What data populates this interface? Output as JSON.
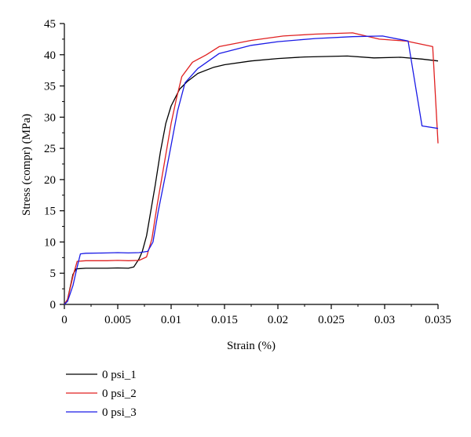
{
  "chart_data": {
    "type": "line",
    "title": "",
    "xlabel": "Strain (%)",
    "ylabel": "Stress (compr) (MPa)",
    "xlim": [
      0,
      0.035
    ],
    "ylim": [
      0,
      45
    ],
    "x_ticks": [
      0,
      0.005,
      0.01,
      0.015,
      0.02,
      0.025,
      0.03,
      0.035
    ],
    "x_tick_labels": [
      "0",
      "0.005",
      "0.01",
      "0.015",
      "0.02",
      "0.025",
      "0.03",
      "0.035"
    ],
    "y_ticks": [
      0,
      5,
      10,
      15,
      20,
      25,
      30,
      35,
      40,
      45
    ],
    "y_tick_labels": [
      "0",
      "5",
      "10",
      "15",
      "20",
      "25",
      "30",
      "35",
      "40",
      "45"
    ],
    "grid": false,
    "legend": {
      "placement": "below-left"
    },
    "series": [
      {
        "name": "0 psi_1",
        "color": "#000000",
        "points": [
          [
            0,
            0
          ],
          [
            0.0003,
            0.8
          ],
          [
            0.0008,
            4.8
          ],
          [
            0.0011,
            5.7
          ],
          [
            0.002,
            5.8
          ],
          [
            0.004,
            5.8
          ],
          [
            0.005,
            5.85
          ],
          [
            0.006,
            5.8
          ],
          [
            0.0065,
            6.0
          ],
          [
            0.007,
            7.3
          ],
          [
            0.0073,
            8.5
          ],
          [
            0.0077,
            11
          ],
          [
            0.008,
            14
          ],
          [
            0.0085,
            19
          ],
          [
            0.009,
            24.5
          ],
          [
            0.0095,
            29
          ],
          [
            0.01,
            31.8
          ],
          [
            0.0108,
            34.5
          ],
          [
            0.0115,
            35.7
          ],
          [
            0.0125,
            37
          ],
          [
            0.014,
            38
          ],
          [
            0.015,
            38.4
          ],
          [
            0.0175,
            39
          ],
          [
            0.02,
            39.4
          ],
          [
            0.0225,
            39.65
          ],
          [
            0.0265,
            39.8
          ],
          [
            0.029,
            39.5
          ],
          [
            0.0315,
            39.6
          ],
          [
            0.0335,
            39.3
          ],
          [
            0.035,
            39.0
          ]
        ]
      },
      {
        "name": "0 psi_2",
        "color": "#e02020",
        "points": [
          [
            0,
            0
          ],
          [
            0.0003,
            0.8
          ],
          [
            0.0008,
            4.5
          ],
          [
            0.0012,
            6.9
          ],
          [
            0.002,
            7.0
          ],
          [
            0.004,
            7.0
          ],
          [
            0.005,
            7.05
          ],
          [
            0.006,
            7.0
          ],
          [
            0.007,
            7.05
          ],
          [
            0.0077,
            7.6
          ],
          [
            0.0082,
            10.5
          ],
          [
            0.0087,
            16
          ],
          [
            0.0093,
            22
          ],
          [
            0.01,
            29
          ],
          [
            0.0105,
            33
          ],
          [
            0.011,
            36.5
          ],
          [
            0.012,
            38.8
          ],
          [
            0.0133,
            40
          ],
          [
            0.0145,
            41.3
          ],
          [
            0.0175,
            42.3
          ],
          [
            0.0205,
            43
          ],
          [
            0.0235,
            43.3
          ],
          [
            0.027,
            43.5
          ],
          [
            0.0295,
            42.5
          ],
          [
            0.032,
            42.2
          ],
          [
            0.0345,
            41.3
          ],
          [
            0.035,
            25.8
          ]
        ]
      },
      {
        "name": "0 psi_3",
        "color": "#1a1ae6",
        "points": [
          [
            0,
            0
          ],
          [
            0.0003,
            0.5
          ],
          [
            0.0008,
            3.0
          ],
          [
            0.0012,
            6.0
          ],
          [
            0.0015,
            8.1
          ],
          [
            0.002,
            8.2
          ],
          [
            0.004,
            8.25
          ],
          [
            0.005,
            8.3
          ],
          [
            0.006,
            8.25
          ],
          [
            0.007,
            8.3
          ],
          [
            0.0078,
            8.5
          ],
          [
            0.0083,
            10
          ],
          [
            0.0088,
            15
          ],
          [
            0.0095,
            21
          ],
          [
            0.01,
            25.5
          ],
          [
            0.0106,
            31
          ],
          [
            0.0113,
            35.5
          ],
          [
            0.0125,
            37.8
          ],
          [
            0.0145,
            40.2
          ],
          [
            0.0175,
            41.5
          ],
          [
            0.02,
            42.1
          ],
          [
            0.0235,
            42.6
          ],
          [
            0.027,
            42.9
          ],
          [
            0.0298,
            43.0
          ],
          [
            0.0322,
            42.2
          ],
          [
            0.0335,
            28.6
          ],
          [
            0.035,
            28.2
          ]
        ]
      }
    ]
  }
}
